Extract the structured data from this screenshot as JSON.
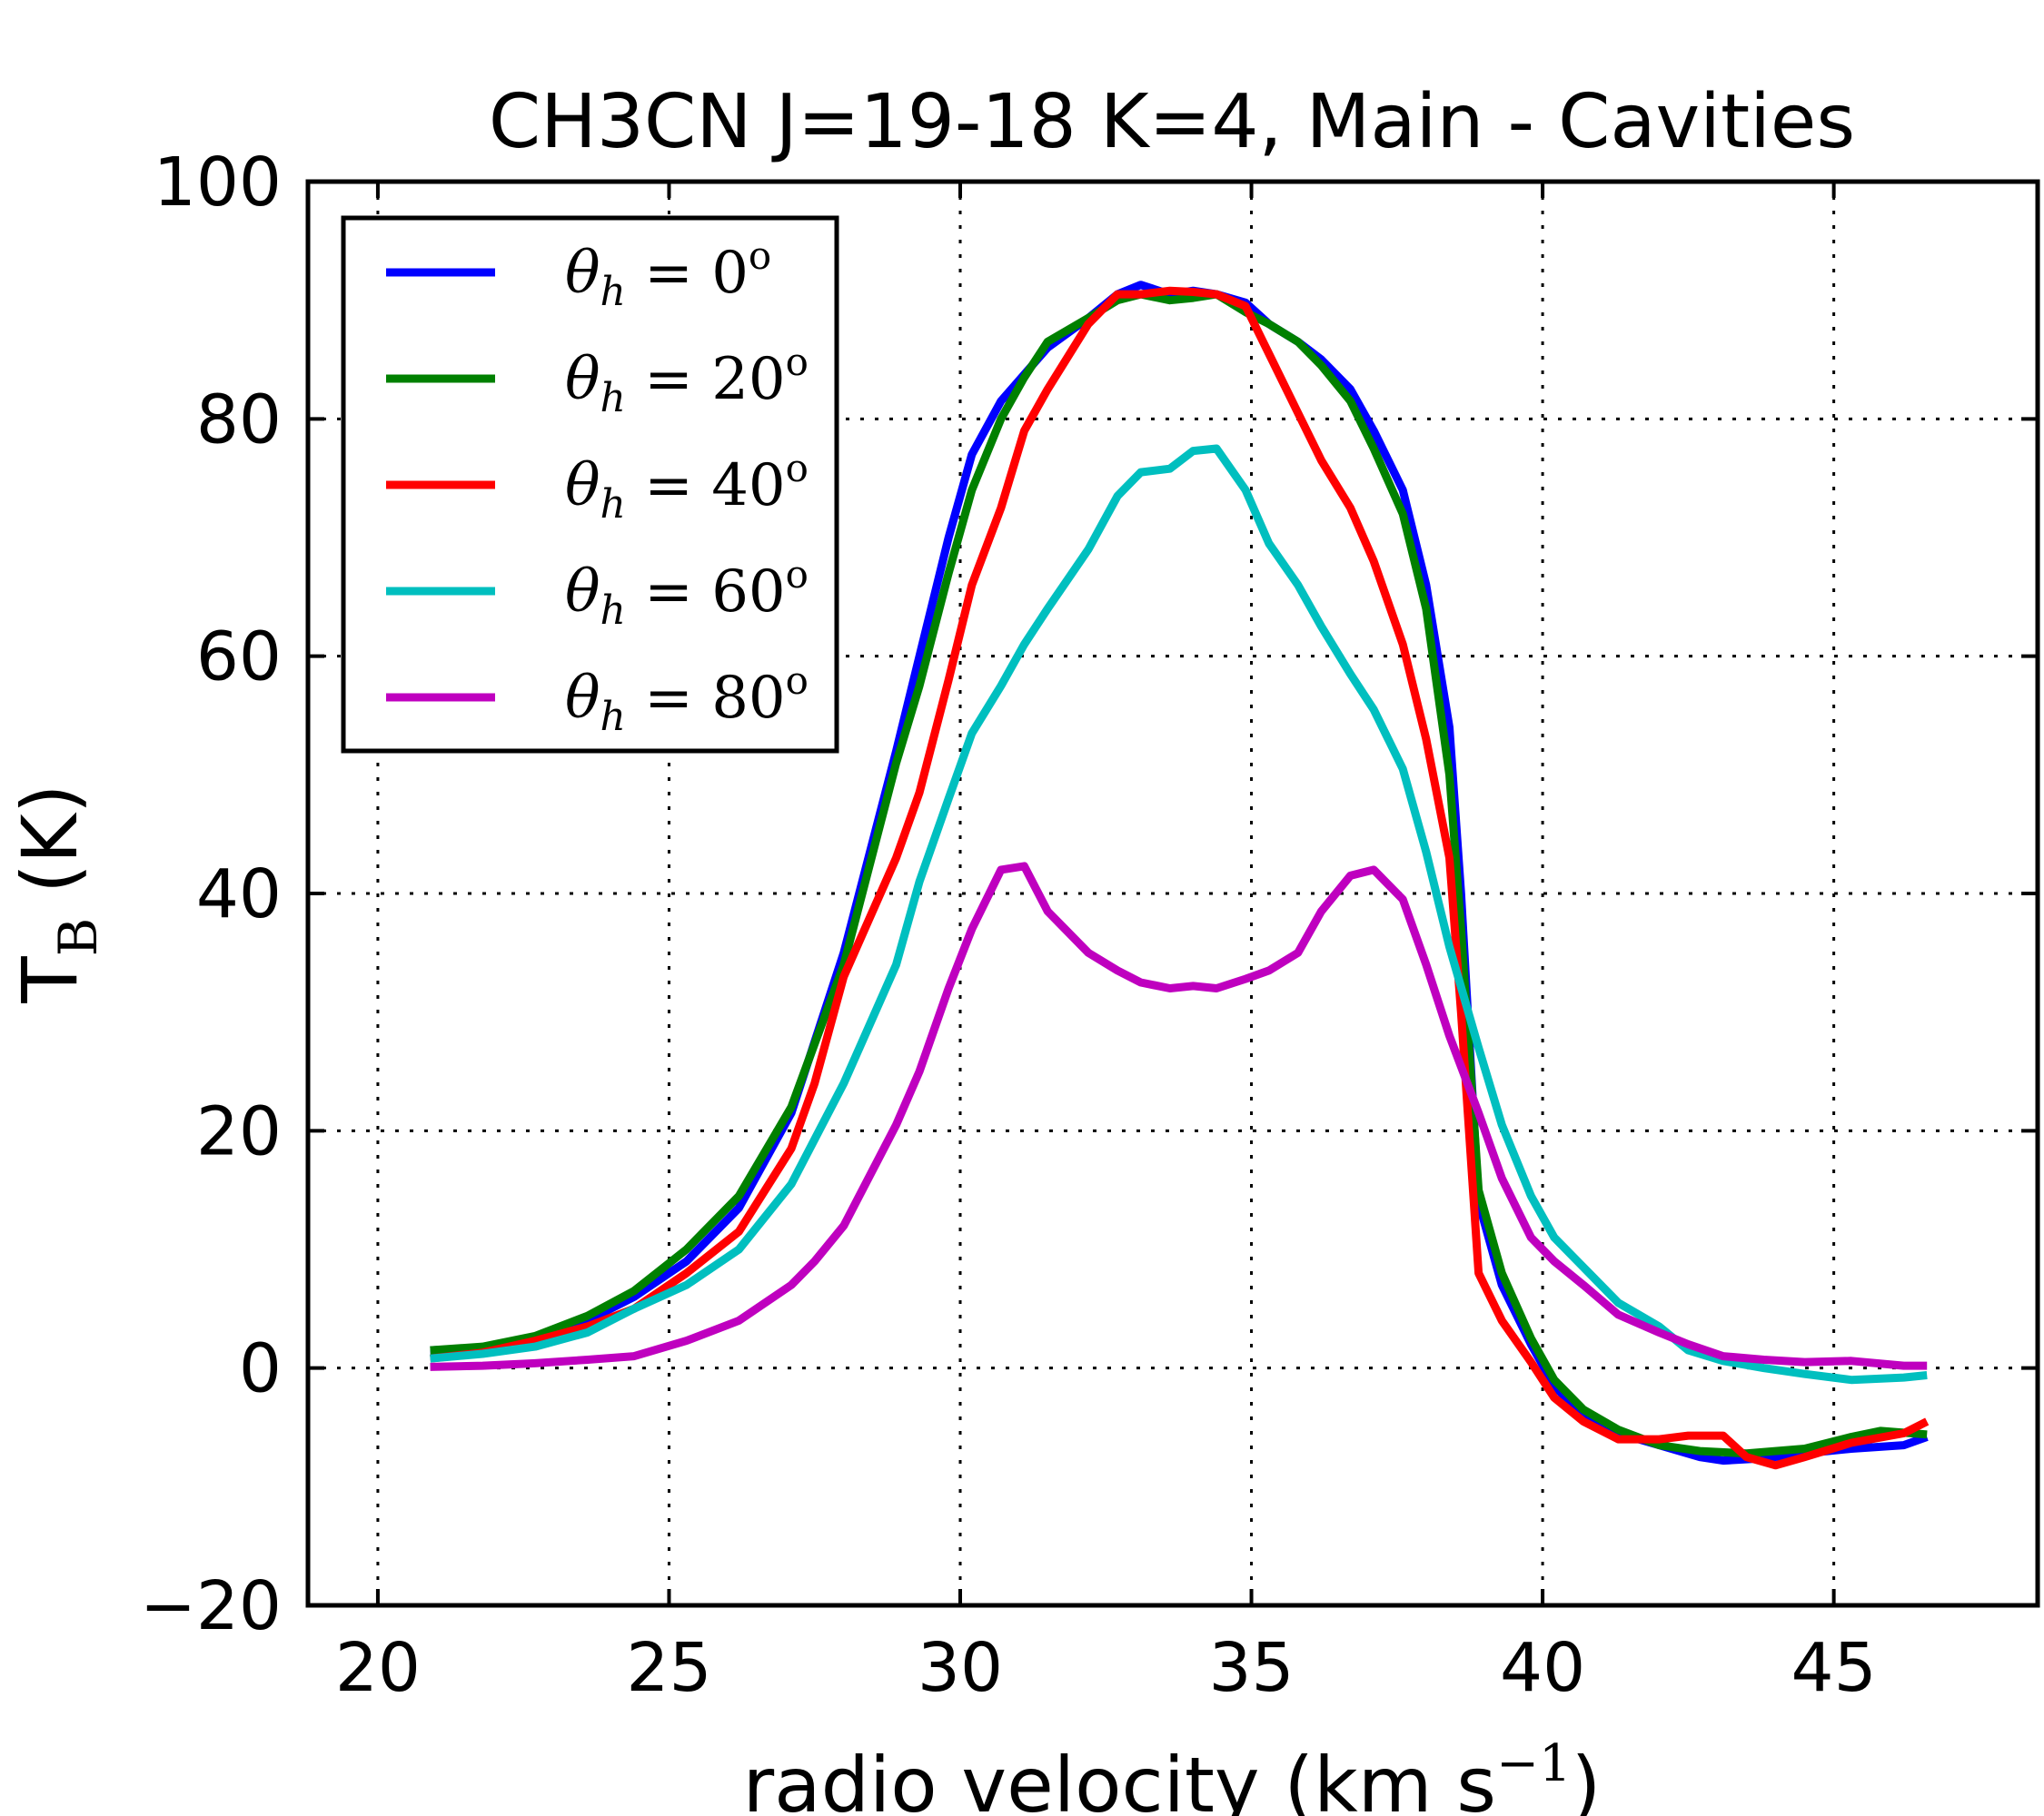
{
  "chart_data": {
    "type": "line",
    "title": "CH3CN J=19-18 K=4, Main - Cavities",
    "xlabel": "radio velocity (km s⁻¹)",
    "ylabel": "T_B (K)",
    "xlim": [
      18.8,
      48.5
    ],
    "ylim": [
      -20,
      100
    ],
    "xticks": [
      20,
      25,
      30,
      35,
      40,
      45
    ],
    "yticks": [
      -20,
      0,
      20,
      40,
      60,
      80,
      100
    ],
    "xtick_labels": [
      "20",
      "25",
      "30",
      "35",
      "40",
      "45"
    ],
    "ytick_labels": [
      "−20",
      "0",
      "20",
      "40",
      "60",
      "80",
      "100"
    ],
    "grid": true,
    "legend_position": "top-left",
    "series": [
      {
        "name": "θh = 0°",
        "color": "#0000ff",
        "points": [
          [
            20.9,
            1.5
          ],
          [
            21.8,
            1.7
          ],
          [
            22.7,
            2.5
          ],
          [
            23.6,
            4.0
          ],
          [
            24.4,
            6.0
          ],
          [
            25.3,
            9.0
          ],
          [
            26.2,
            13.5
          ],
          [
            27.1,
            21.5
          ],
          [
            28.0,
            35.0
          ],
          [
            28.9,
            52.0
          ],
          [
            29.3,
            60.0
          ],
          [
            29.8,
            70.0
          ],
          [
            30.2,
            77.0
          ],
          [
            30.7,
            81.5
          ],
          [
            31.5,
            86.0
          ],
          [
            32.2,
            88.5
          ],
          [
            32.7,
            90.5
          ],
          [
            33.1,
            91.3
          ],
          [
            33.6,
            90.5
          ],
          [
            34.0,
            90.8
          ],
          [
            34.4,
            90.5
          ],
          [
            34.9,
            89.8
          ],
          [
            35.3,
            88.0
          ],
          [
            35.8,
            86.5
          ],
          [
            36.2,
            85.0
          ],
          [
            36.7,
            82.5
          ],
          [
            37.1,
            79.0
          ],
          [
            37.6,
            74.0
          ],
          [
            38.0,
            66.0
          ],
          [
            38.4,
            54.0
          ],
          [
            38.6,
            40.0
          ],
          [
            38.9,
            14.0
          ],
          [
            39.3,
            7.0
          ],
          [
            39.8,
            2.0
          ],
          [
            40.2,
            -1.5
          ],
          [
            40.7,
            -4.0
          ],
          [
            41.3,
            -5.5
          ],
          [
            42.0,
            -6.5
          ],
          [
            42.7,
            -7.5
          ],
          [
            43.1,
            -7.8
          ],
          [
            43.8,
            -7.6
          ],
          [
            44.5,
            -7.2
          ],
          [
            45.3,
            -6.8
          ],
          [
            46.2,
            -6.5
          ],
          [
            46.6,
            -5.8
          ]
        ]
      },
      {
        "name": "θh = 20°",
        "color": "#008000",
        "points": [
          [
            20.9,
            1.5
          ],
          [
            21.8,
            1.8
          ],
          [
            22.7,
            2.7
          ],
          [
            23.6,
            4.4
          ],
          [
            24.4,
            6.5
          ],
          [
            25.3,
            10.0
          ],
          [
            26.2,
            14.5
          ],
          [
            27.1,
            22.0
          ],
          [
            28.0,
            34.0
          ],
          [
            28.9,
            51.0
          ],
          [
            29.3,
            57.5
          ],
          [
            29.8,
            67.0
          ],
          [
            30.2,
            74.0
          ],
          [
            30.7,
            80.0
          ],
          [
            31.1,
            83.5
          ],
          [
            31.5,
            86.5
          ],
          [
            32.2,
            88.5
          ],
          [
            32.7,
            90.0
          ],
          [
            33.1,
            90.5
          ],
          [
            33.6,
            90.0
          ],
          [
            34.0,
            90.2
          ],
          [
            34.4,
            90.5
          ],
          [
            34.9,
            89.0
          ],
          [
            35.3,
            88.0
          ],
          [
            35.8,
            86.5
          ],
          [
            36.2,
            84.5
          ],
          [
            36.7,
            81.5
          ],
          [
            37.1,
            77.5
          ],
          [
            37.6,
            72.0
          ],
          [
            38.0,
            64.0
          ],
          [
            38.4,
            50.0
          ],
          [
            38.6,
            37.0
          ],
          [
            38.9,
            15.0
          ],
          [
            39.3,
            8.0
          ],
          [
            39.8,
            2.5
          ],
          [
            40.2,
            -1.0
          ],
          [
            40.7,
            -3.5
          ],
          [
            41.3,
            -5.2
          ],
          [
            42.0,
            -6.5
          ],
          [
            42.7,
            -7.0
          ],
          [
            43.5,
            -7.2
          ],
          [
            44.5,
            -6.8
          ],
          [
            45.3,
            -5.8
          ],
          [
            45.8,
            -5.3
          ],
          [
            46.6,
            -5.6
          ]
        ]
      },
      {
        "name": "θh = 40°",
        "color": "#ff0000",
        "points": [
          [
            20.9,
            0.8
          ],
          [
            21.8,
            1.3
          ],
          [
            22.7,
            2.3
          ],
          [
            23.6,
            3.5
          ],
          [
            24.4,
            5.0
          ],
          [
            25.3,
            8.0
          ],
          [
            26.2,
            11.5
          ],
          [
            27.1,
            18.5
          ],
          [
            27.5,
            24.0
          ],
          [
            28.0,
            33.0
          ],
          [
            28.9,
            43.0
          ],
          [
            29.3,
            48.5
          ],
          [
            29.8,
            58.0
          ],
          [
            30.2,
            66.0
          ],
          [
            30.7,
            72.5
          ],
          [
            31.1,
            79.0
          ],
          [
            31.5,
            82.5
          ],
          [
            32.2,
            88.0
          ],
          [
            32.7,
            90.5
          ],
          [
            33.1,
            90.5
          ],
          [
            33.6,
            90.8
          ],
          [
            34.0,
            90.7
          ],
          [
            34.4,
            90.5
          ],
          [
            34.9,
            89.5
          ],
          [
            35.3,
            85.5
          ],
          [
            35.8,
            80.5
          ],
          [
            36.2,
            76.5
          ],
          [
            36.7,
            72.5
          ],
          [
            37.1,
            68.0
          ],
          [
            37.6,
            61.0
          ],
          [
            38.0,
            53.0
          ],
          [
            38.4,
            43.0
          ],
          [
            38.6,
            30.0
          ],
          [
            38.9,
            8.0
          ],
          [
            39.3,
            4.0
          ],
          [
            39.8,
            0.5
          ],
          [
            40.2,
            -2.5
          ],
          [
            40.7,
            -4.5
          ],
          [
            41.3,
            -6.0
          ],
          [
            42.0,
            -6.0
          ],
          [
            42.5,
            -5.7
          ],
          [
            43.1,
            -5.7
          ],
          [
            43.5,
            -7.5
          ],
          [
            44.0,
            -8.2
          ],
          [
            44.5,
            -7.5
          ],
          [
            45.3,
            -6.3
          ],
          [
            46.2,
            -5.5
          ],
          [
            46.6,
            -4.5
          ]
        ]
      },
      {
        "name": "θh = 60°",
        "color": "#00bfbf",
        "points": [
          [
            20.9,
            0.8
          ],
          [
            21.8,
            1.2
          ],
          [
            22.7,
            1.8
          ],
          [
            23.6,
            3.0
          ],
          [
            24.4,
            5.0
          ],
          [
            25.3,
            7.0
          ],
          [
            26.2,
            10.0
          ],
          [
            27.1,
            15.5
          ],
          [
            28.0,
            24.0
          ],
          [
            28.9,
            34.0
          ],
          [
            29.3,
            41.0
          ],
          [
            29.8,
            48.0
          ],
          [
            30.2,
            53.5
          ],
          [
            30.7,
            57.5
          ],
          [
            31.1,
            61.0
          ],
          [
            31.5,
            64.0
          ],
          [
            32.2,
            69.0
          ],
          [
            32.7,
            73.5
          ],
          [
            33.1,
            75.5
          ],
          [
            33.6,
            75.8
          ],
          [
            34.0,
            77.3
          ],
          [
            34.4,
            77.5
          ],
          [
            34.9,
            74.0
          ],
          [
            35.3,
            69.5
          ],
          [
            35.8,
            66.0
          ],
          [
            36.2,
            62.5
          ],
          [
            36.7,
            58.5
          ],
          [
            37.1,
            55.5
          ],
          [
            37.6,
            50.5
          ],
          [
            38.0,
            43.5
          ],
          [
            38.4,
            35.5
          ],
          [
            38.9,
            27.0
          ],
          [
            39.3,
            20.5
          ],
          [
            39.8,
            14.5
          ],
          [
            40.2,
            11.0
          ],
          [
            40.7,
            8.5
          ],
          [
            41.3,
            5.5
          ],
          [
            42.0,
            3.5
          ],
          [
            42.5,
            1.5
          ],
          [
            43.1,
            0.6
          ],
          [
            43.8,
            0.0
          ],
          [
            44.5,
            -0.5
          ],
          [
            45.3,
            -1.0
          ],
          [
            46.2,
            -0.8
          ],
          [
            46.6,
            -0.6
          ]
        ]
      },
      {
        "name": "θh = 80°",
        "color": "#bf00bf",
        "points": [
          [
            20.9,
            0.1
          ],
          [
            21.8,
            0.2
          ],
          [
            22.7,
            0.4
          ],
          [
            23.6,
            0.7
          ],
          [
            24.4,
            1.0
          ],
          [
            25.3,
            2.3
          ],
          [
            26.2,
            4.0
          ],
          [
            27.1,
            7.0
          ],
          [
            27.5,
            9.0
          ],
          [
            28.0,
            12.0
          ],
          [
            28.9,
            20.5
          ],
          [
            29.3,
            25.0
          ],
          [
            29.8,
            32.0
          ],
          [
            30.2,
            37.0
          ],
          [
            30.7,
            42.0
          ],
          [
            31.1,
            42.3
          ],
          [
            31.5,
            38.5
          ],
          [
            32.2,
            35.0
          ],
          [
            32.7,
            33.5
          ],
          [
            33.1,
            32.5
          ],
          [
            33.6,
            32.0
          ],
          [
            34.0,
            32.2
          ],
          [
            34.4,
            32.0
          ],
          [
            34.9,
            32.8
          ],
          [
            35.3,
            33.5
          ],
          [
            35.8,
            35.0
          ],
          [
            36.2,
            38.5
          ],
          [
            36.7,
            41.5
          ],
          [
            37.1,
            42.0
          ],
          [
            37.6,
            39.5
          ],
          [
            38.0,
            34.0
          ],
          [
            38.4,
            28.0
          ],
          [
            38.9,
            21.5
          ],
          [
            39.3,
            16.0
          ],
          [
            39.8,
            11.0
          ],
          [
            40.2,
            9.0
          ],
          [
            40.7,
            7.0
          ],
          [
            41.3,
            4.5
          ],
          [
            42.0,
            3.0
          ],
          [
            42.5,
            2.0
          ],
          [
            43.1,
            1.0
          ],
          [
            43.8,
            0.7
          ],
          [
            44.5,
            0.5
          ],
          [
            45.3,
            0.6
          ],
          [
            46.2,
            0.2
          ],
          [
            46.6,
            0.2
          ]
        ]
      }
    ]
  },
  "legend": {
    "items": [
      {
        "theta": "θ",
        "sub": "h",
        "eq": " = ",
        "val": "0",
        "deg": "o"
      },
      {
        "theta": "θ",
        "sub": "h",
        "eq": " = ",
        "val": "20",
        "deg": "o"
      },
      {
        "theta": "θ",
        "sub": "h",
        "eq": " = ",
        "val": "40",
        "deg": "o"
      },
      {
        "theta": "θ",
        "sub": "h",
        "eq": " = ",
        "val": "60",
        "deg": "o"
      },
      {
        "theta": "θ",
        "sub": "h",
        "eq": " = ",
        "val": "80",
        "deg": "o"
      }
    ]
  },
  "axis_text": {
    "xlabel_main": "radio velocity (km s",
    "xlabel_sup": "−1",
    "xlabel_end": ")",
    "ylabel_main": "T",
    "ylabel_sub": "B",
    "ylabel_end": " (K)"
  }
}
